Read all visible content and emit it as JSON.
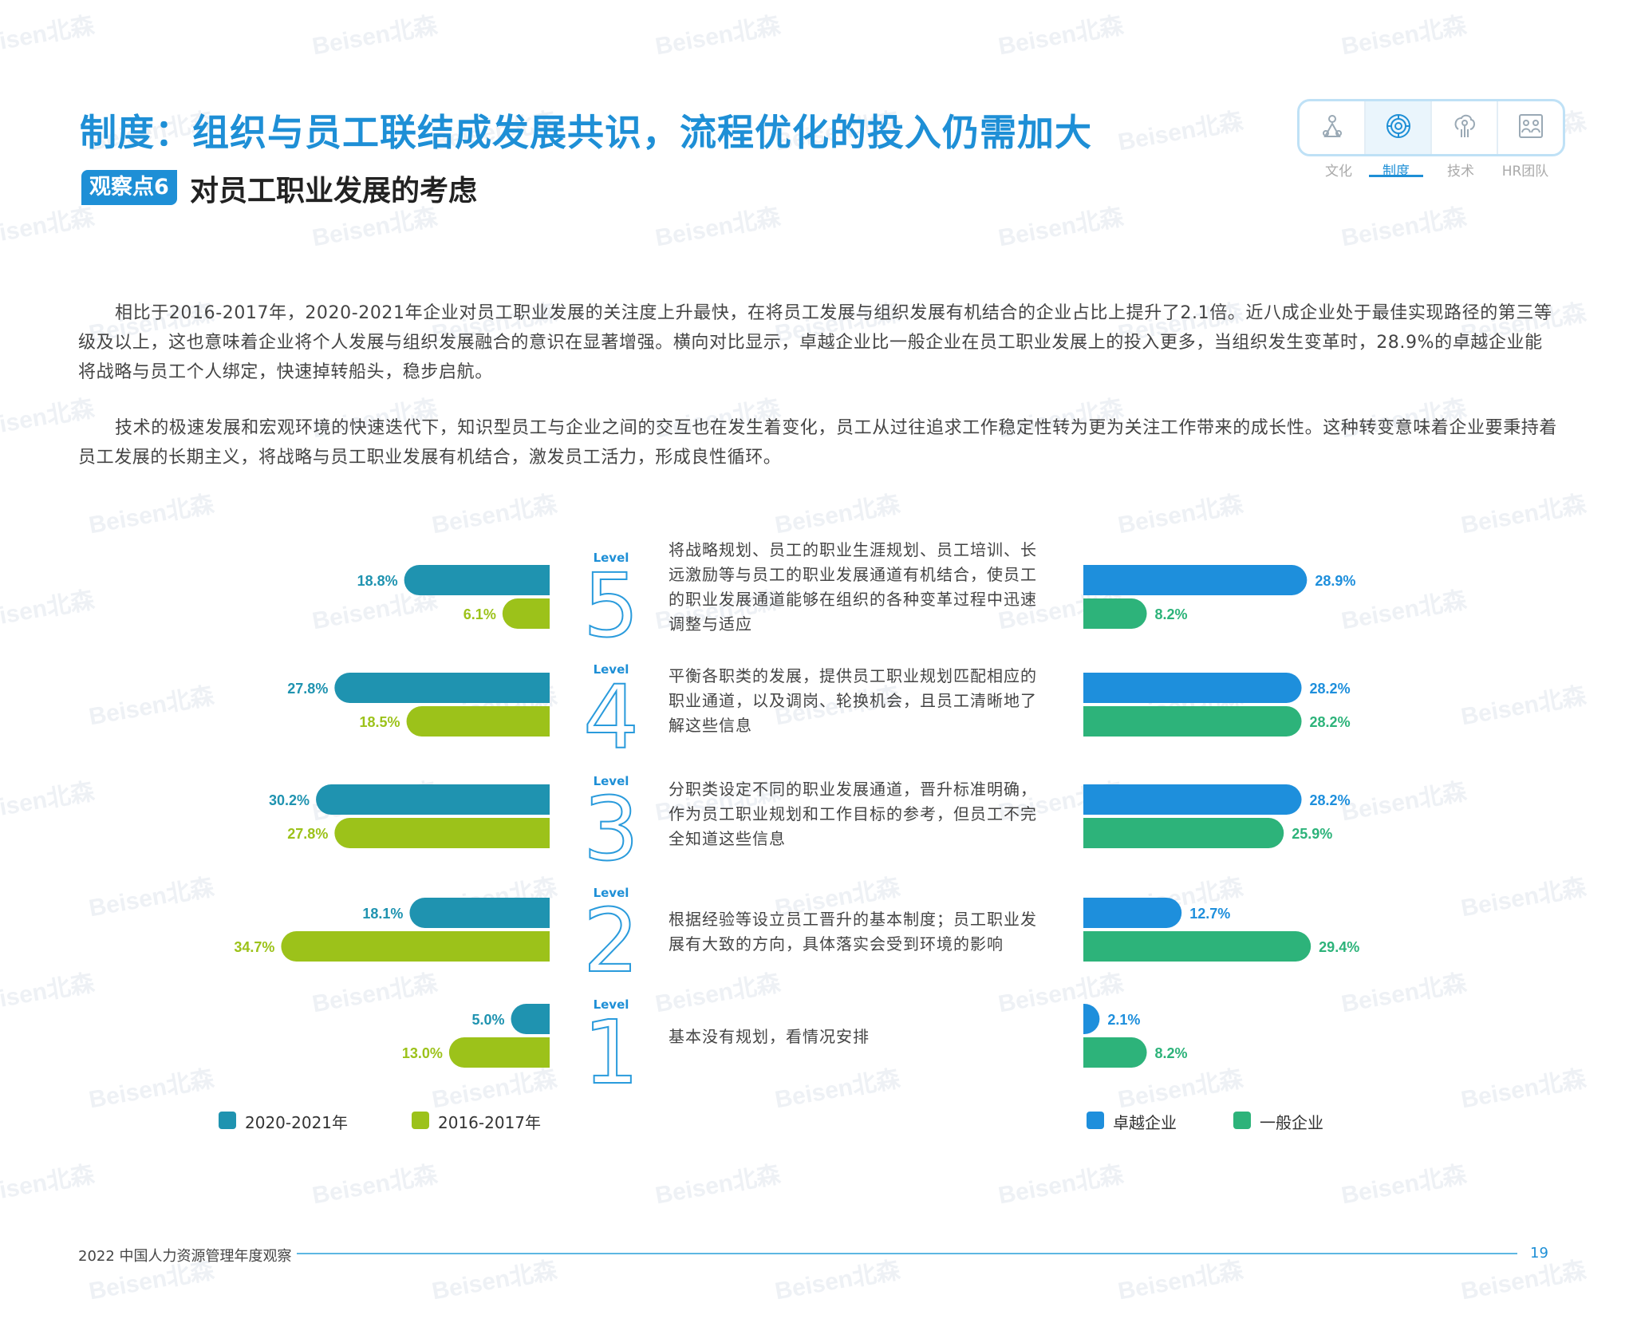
{
  "page": {
    "title": "制度：组织与员工联结成发展共识，流程优化的投入仍需加大",
    "observation_badge": "观察点6",
    "observation_title": "对员工职业发展的考虑",
    "watermark_text": "Beisen北森",
    "paragraphs": [
      "相比于2016-2017年，2020-2021年企业对员工职业发展的关注度上升最快，在将员工发展与组织发展有机结合的企业占比上提升了2.1倍。近八成企业处于最佳实现路径的第三等级及以上，这也意味着企业将个人发展与组织发展融合的意识在显著增强。横向对比显示，卓越企业比一般企业在员工职业发展上的投入更多，当组织发生变革时，28.9%的卓越企业能将战略与员工个人绑定，快速掉转船头，稳步启航。",
      "技术的极速发展和宏观环境的快速迭代下，知识型员工与企业之间的交互也在发生着变化，员工从过往追求工作稳定性转为更为关注工作带来的成长性。这种转变意味着企业要秉持着员工发展的长期主义，将战略与员工职业发展有机结合，激发员工活力，形成良性循环。"
    ],
    "footer": "2022 中国人力资源管理年度观察",
    "page_number": "19"
  },
  "nav": {
    "items": [
      {
        "label": "文化",
        "icon": "culture-icon",
        "active": false
      },
      {
        "label": "制度",
        "icon": "system-icon",
        "active": true
      },
      {
        "label": "技术",
        "icon": "tech-icon",
        "active": false
      },
      {
        "label": "HR团队",
        "icon": "hr-team-icon",
        "active": false
      }
    ]
  },
  "chart_data": [
    {
      "type": "bar",
      "orientation": "horizontal",
      "direction": "right-to-left",
      "categories": [
        "Level 5",
        "Level 4",
        "Level 3",
        "Level 2",
        "Level 1"
      ],
      "series": [
        {
          "name": "2020-2021年",
          "color": "#1f93b0",
          "values": [
            18.8,
            27.8,
            30.2,
            18.1,
            5.0
          ],
          "labels": [
            "18.8%",
            "27.8%",
            "30.2%",
            "18.1%",
            "5.0%"
          ]
        },
        {
          "name": "2016-2017年",
          "color": "#9cc21a",
          "values": [
            6.1,
            18.5,
            27.8,
            34.7,
            13.0
          ],
          "labels": [
            "6.1%",
            "18.5%",
            "27.8%",
            "34.7%",
            "13.0%"
          ]
        }
      ],
      "legend": "bottom"
    },
    {
      "type": "bar",
      "orientation": "horizontal",
      "direction": "left-to-right",
      "categories": [
        "Level 5",
        "Level 4",
        "Level 3",
        "Level 2",
        "Level 1"
      ],
      "series": [
        {
          "name": "卓越企业",
          "color": "#1e8fdc",
          "values": [
            28.9,
            28.2,
            28.2,
            12.7,
            2.1
          ],
          "labels": [
            "28.9%",
            "28.2%",
            "28.2%",
            "12.7%",
            "2.1%"
          ]
        },
        {
          "name": "一般企业",
          "color": "#2db37a",
          "values": [
            8.2,
            28.2,
            25.9,
            29.4,
            8.2
          ],
          "labels": [
            "8.2%",
            "28.2%",
            "25.9%",
            "29.4%",
            "8.2%"
          ]
        }
      ],
      "legend": "bottom"
    }
  ],
  "levels": [
    {
      "word": "Level",
      "number": "5",
      "description": "将战略规划、员工的职业生涯规划、员工培训、长远激励等与员工的职业发展通道有机结合，使员工的职业发展通道能够在组织的各种变革过程中迅速调整与适应"
    },
    {
      "word": "Level",
      "number": "4",
      "description": "平衡各职类的发展，提供员工职业规划匹配相应的职业通道，以及调岗、轮换机会，且员工清晰地了解这些信息"
    },
    {
      "word": "Level",
      "number": "3",
      "description": "分职类设定不同的职业发展通道，晋升标准明确，作为员工职业规划和工作目标的参考，但员工不完全知道这些信息"
    },
    {
      "word": "Level",
      "number": "2",
      "description": "根据经验等设立员工晋升的基本制度；员工职业发展有大致的方向，具体落实会受到环境的影响"
    },
    {
      "word": "Level",
      "number": "1",
      "description": "基本没有规划，看情况安排"
    }
  ]
}
